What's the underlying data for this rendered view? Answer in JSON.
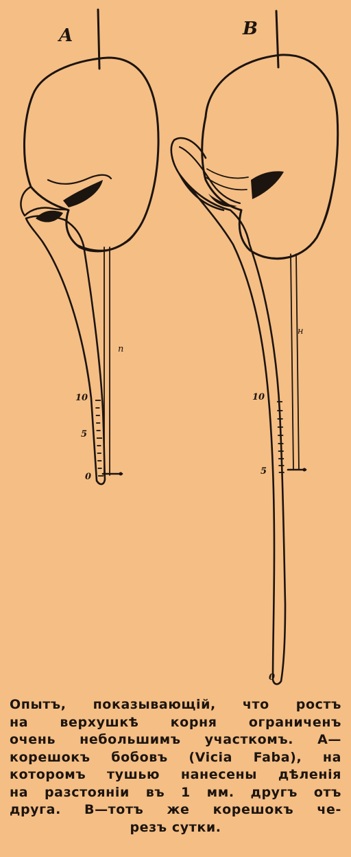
{
  "figure": {
    "panel_a": {
      "label": "A",
      "scale_labels": [
        "10",
        "5",
        "0"
      ],
      "mark_label": "n"
    },
    "panel_b": {
      "label": "B",
      "scale_labels": [
        "10",
        "5",
        "0"
      ],
      "mark_label": "н"
    }
  },
  "caption": {
    "lines": [
      "Опытъ, показывающій, что ростъ",
      "на верхушкѣ корня ограниченъ",
      "очень небольшимъ участкомъ. A—",
      "корешокъ бобовъ (Vicia Faba), на",
      "которомъ тушью нанесены дѣленія",
      "на разстояніи въ 1 мм. другъ отъ",
      "друга. B—тотъ же корешокъ че-",
      "резъ сутки."
    ]
  }
}
